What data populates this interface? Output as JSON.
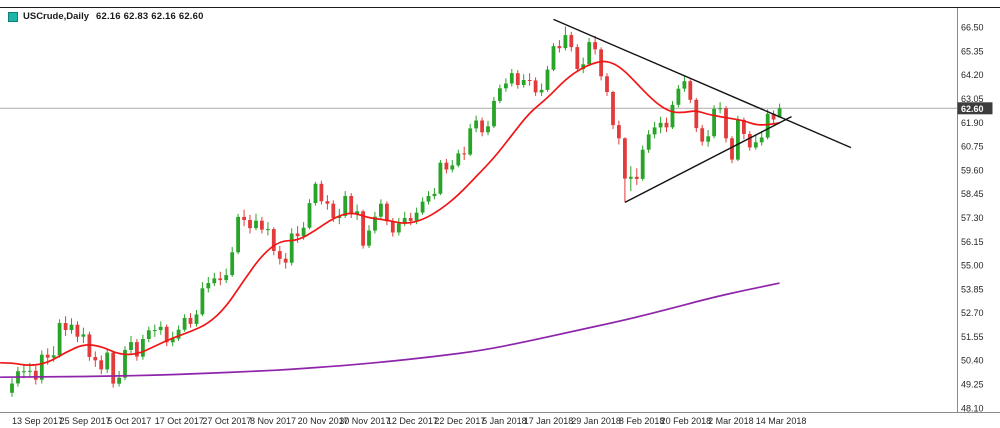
{
  "header": {
    "symbol": "USCrude,Daily",
    "ohlc": "62.16 62.83 62.16 62.60",
    "marker_color": "#1fb5ad"
  },
  "chart_data": {
    "type": "candlestick",
    "title": "USCrude, Daily",
    "legend_position": "none",
    "grid": false,
    "ylim": [
      47.92,
      67.45
    ],
    "last_price": 62.6,
    "last_price_label": "62.60",
    "y_ticks": [
      "66.50",
      "65.35",
      "64.20",
      "63.05",
      "61.90",
      "60.75",
      "59.60",
      "58.45",
      "57.30",
      "56.15",
      "55.00",
      "53.85",
      "52.70",
      "51.55",
      "50.40",
      "49.25",
      "48.10"
    ],
    "x_labels": [
      {
        "label": "13 Sep 2017",
        "i": 0
      },
      {
        "label": "25 Sep 2017",
        "i": 8
      },
      {
        "label": "5 Oct 2017",
        "i": 16
      },
      {
        "label": "17 Oct 2017",
        "i": 24
      },
      {
        "label": "27 Oct 2017",
        "i": 32
      },
      {
        "label": "8 Nov 2017",
        "i": 40
      },
      {
        "label": "20 Nov 2017",
        "i": 48
      },
      {
        "label": "30 Nov 2017",
        "i": 55
      },
      {
        "label": "12 Dec 2017",
        "i": 63
      },
      {
        "label": "22 Dec 2017",
        "i": 71
      },
      {
        "label": "5 Jan 2018",
        "i": 79
      },
      {
        "label": "17 Jan 2018",
        "i": 86
      },
      {
        "label": "29 Jan 2018",
        "i": 94
      },
      {
        "label": "8 Feb 2018",
        "i": 102
      },
      {
        "label": "20 Feb 2018",
        "i": 109
      },
      {
        "label": "2 Mar 2018",
        "i": 117
      },
      {
        "label": "14 Mar 2018",
        "i": 125
      }
    ],
    "candles": [
      [
        48.85,
        49.55,
        48.65,
        49.3
      ],
      [
        49.3,
        50.1,
        49.15,
        49.89
      ],
      [
        49.89,
        50.25,
        49.55,
        49.89
      ],
      [
        49.89,
        50.3,
        49.6,
        49.91
      ],
      [
        49.91,
        50.15,
        49.25,
        49.48
      ],
      [
        49.48,
        50.9,
        49.3,
        50.69
      ],
      [
        50.69,
        51.0,
        50.2,
        50.55
      ],
      [
        50.55,
        51.1,
        50.35,
        50.66
      ],
      [
        50.66,
        52.4,
        50.55,
        52.22
      ],
      [
        52.22,
        52.55,
        51.6,
        51.88
      ],
      [
        51.88,
        52.45,
        51.7,
        52.14
      ],
      [
        52.14,
        52.3,
        51.3,
        51.56
      ],
      [
        51.56,
        52.0,
        51.25,
        51.67
      ],
      [
        51.67,
        51.8,
        50.4,
        50.58
      ],
      [
        50.58,
        50.85,
        50.1,
        50.42
      ],
      [
        50.42,
        50.65,
        49.75,
        49.98
      ],
      [
        49.98,
        51.0,
        49.8,
        50.79
      ],
      [
        50.79,
        50.85,
        49.1,
        49.29
      ],
      [
        49.29,
        49.9,
        49.15,
        49.58
      ],
      [
        49.58,
        51.1,
        49.45,
        50.92
      ],
      [
        50.92,
        51.6,
        50.75,
        51.3
      ],
      [
        51.3,
        51.45,
        50.4,
        50.6
      ],
      [
        50.6,
        51.65,
        50.45,
        51.45
      ],
      [
        51.45,
        52.05,
        51.3,
        51.87
      ],
      [
        51.87,
        52.15,
        51.55,
        51.88
      ],
      [
        51.88,
        52.3,
        51.65,
        52.04
      ],
      [
        52.04,
        52.15,
        51.1,
        51.29
      ],
      [
        51.29,
        51.8,
        51.1,
        51.47
      ],
      [
        51.47,
        52.1,
        51.35,
        51.9
      ],
      [
        51.9,
        52.65,
        51.8,
        52.47
      ],
      [
        52.47,
        52.7,
        52.0,
        52.18
      ],
      [
        52.18,
        52.85,
        52.05,
        52.64
      ],
      [
        52.64,
        54.2,
        52.55,
        53.9
      ],
      [
        53.9,
        54.45,
        53.7,
        54.15
      ],
      [
        54.15,
        54.65,
        54.0,
        54.38
      ],
      [
        54.38,
        54.7,
        54.05,
        54.3
      ],
      [
        54.3,
        54.85,
        54.15,
        54.54
      ],
      [
        54.54,
        55.9,
        54.45,
        55.64
      ],
      [
        55.64,
        57.5,
        55.55,
        57.35
      ],
      [
        57.35,
        57.7,
        56.9,
        57.2
      ],
      [
        57.2,
        57.45,
        56.55,
        56.81
      ],
      [
        56.81,
        57.5,
        56.7,
        57.17
      ],
      [
        57.17,
        57.35,
        56.55,
        56.74
      ],
      [
        56.74,
        57.1,
        56.45,
        56.76
      ],
      [
        56.76,
        56.85,
        55.5,
        55.7
      ],
      [
        55.7,
        55.95,
        55.05,
        55.33
      ],
      [
        55.33,
        55.6,
        54.85,
        55.14
      ],
      [
        55.14,
        56.8,
        55.0,
        56.55
      ],
      [
        56.55,
        56.9,
        56.1,
        56.42
      ],
      [
        56.42,
        57.1,
        56.25,
        56.83
      ],
      [
        56.83,
        58.2,
        56.75,
        58.02
      ],
      [
        58.02,
        59.05,
        57.9,
        58.95
      ],
      [
        58.95,
        59.1,
        57.95,
        58.11
      ],
      [
        58.11,
        58.4,
        57.7,
        57.99
      ],
      [
        57.99,
        58.15,
        57.1,
        57.3
      ],
      [
        57.3,
        57.75,
        57.0,
        57.4
      ],
      [
        57.4,
        58.6,
        57.3,
        58.36
      ],
      [
        58.36,
        58.5,
        57.3,
        57.47
      ],
      [
        57.47,
        57.95,
        57.2,
        57.62
      ],
      [
        57.62,
        57.7,
        55.82,
        55.96
      ],
      [
        55.96,
        56.95,
        55.85,
        56.69
      ],
      [
        56.69,
        57.6,
        56.55,
        57.36
      ],
      [
        57.36,
        58.2,
        57.25,
        57.99
      ],
      [
        57.99,
        58.1,
        56.95,
        57.14
      ],
      [
        57.14,
        57.3,
        56.4,
        56.6
      ],
      [
        56.6,
        57.3,
        56.45,
        57.04
      ],
      [
        57.04,
        57.6,
        56.9,
        57.3
      ],
      [
        57.3,
        57.55,
        56.95,
        57.16
      ],
      [
        57.16,
        57.8,
        57.0,
        57.56
      ],
      [
        57.56,
        58.3,
        57.45,
        58.09
      ],
      [
        58.09,
        58.6,
        57.95,
        58.36
      ],
      [
        58.36,
        58.75,
        58.2,
        58.47
      ],
      [
        58.47,
        60.1,
        58.4,
        59.97
      ],
      [
        59.97,
        60.15,
        59.45,
        59.64
      ],
      [
        59.64,
        60.1,
        59.5,
        59.84
      ],
      [
        59.84,
        60.6,
        59.75,
        60.42
      ],
      [
        60.42,
        60.75,
        60.1,
        60.37
      ],
      [
        60.37,
        61.85,
        60.3,
        61.63
      ],
      [
        61.63,
        62.25,
        61.45,
        62.01
      ],
      [
        62.01,
        62.15,
        61.25,
        61.44
      ],
      [
        61.44,
        62.0,
        61.3,
        61.73
      ],
      [
        61.73,
        63.15,
        61.65,
        62.96
      ],
      [
        62.96,
        63.75,
        62.85,
        63.57
      ],
      [
        63.57,
        64.05,
        63.4,
        63.8
      ],
      [
        63.8,
        64.5,
        63.65,
        64.3
      ],
      [
        64.3,
        64.45,
        63.55,
        63.73
      ],
      [
        63.73,
        64.25,
        63.6,
        63.97
      ],
      [
        63.97,
        64.3,
        63.7,
        63.95
      ],
      [
        63.95,
        64.1,
        63.2,
        63.37
      ],
      [
        63.37,
        63.8,
        63.2,
        63.49
      ],
      [
        63.49,
        64.65,
        63.4,
        64.47
      ],
      [
        64.47,
        65.75,
        64.4,
        65.61
      ],
      [
        65.61,
        65.9,
        65.3,
        65.51
      ],
      [
        65.51,
        66.55,
        65.4,
        66.14
      ],
      [
        66.14,
        66.3,
        65.35,
        65.56
      ],
      [
        65.56,
        65.7,
        64.35,
        64.5
      ],
      [
        64.5,
        65.05,
        64.3,
        64.73
      ],
      [
        64.73,
        66.0,
        64.65,
        65.8
      ],
      [
        65.8,
        66.1,
        65.2,
        65.45
      ],
      [
        65.45,
        65.55,
        63.95,
        64.15
      ],
      [
        64.15,
        64.3,
        63.2,
        63.39
      ],
      [
        63.39,
        63.45,
        61.6,
        61.79
      ],
      [
        61.79,
        62.0,
        60.85,
        61.15
      ],
      [
        61.15,
        61.2,
        58.07,
        59.2
      ],
      [
        59.2,
        59.8,
        58.6,
        59.29
      ],
      [
        59.29,
        59.7,
        58.9,
        59.19
      ],
      [
        59.19,
        60.8,
        59.1,
        60.6
      ],
      [
        60.6,
        61.55,
        60.45,
        61.34
      ],
      [
        61.34,
        61.95,
        61.15,
        61.68
      ],
      [
        61.68,
        62.2,
        61.4,
        61.9
      ],
      [
        61.9,
        62.15,
        61.45,
        61.68
      ],
      [
        61.68,
        62.95,
        61.6,
        62.77
      ],
      [
        62.77,
        63.73,
        62.65,
        63.55
      ],
      [
        63.55,
        64.15,
        63.4,
        63.91
      ],
      [
        63.91,
        64.0,
        62.85,
        63.01
      ],
      [
        63.01,
        63.1,
        61.45,
        61.64
      ],
      [
        61.64,
        61.8,
        60.8,
        60.99
      ],
      [
        60.99,
        61.55,
        60.75,
        61.25
      ],
      [
        61.25,
        62.75,
        61.15,
        62.57
      ],
      [
        62.57,
        62.9,
        62.35,
        62.6
      ],
      [
        62.6,
        62.7,
        60.95,
        61.15
      ],
      [
        61.15,
        61.25,
        59.95,
        60.12
      ],
      [
        60.12,
        62.25,
        60.05,
        62.04
      ],
      [
        62.04,
        62.15,
        61.1,
        61.36
      ],
      [
        61.36,
        61.5,
        60.55,
        60.71
      ],
      [
        60.71,
        61.3,
        60.6,
        60.96
      ],
      [
        60.96,
        61.5,
        60.8,
        61.19
      ],
      [
        61.19,
        62.55,
        61.1,
        62.34
      ],
      [
        62.34,
        62.5,
        61.85,
        62.06
      ],
      [
        62.16,
        62.83,
        62.16,
        62.6
      ]
    ],
    "series": [
      {
        "name": "ma-fast-red",
        "color": "#f01616",
        "width": 1.7,
        "points": [
          [
            -2,
            50.3
          ],
          [
            0,
            50.3
          ],
          [
            3,
            50.15
          ],
          [
            6,
            50.3
          ],
          [
            9,
            50.8
          ],
          [
            12,
            51.2
          ],
          [
            15,
            51.1
          ],
          [
            18,
            50.7
          ],
          [
            21,
            50.7
          ],
          [
            24,
            51.1
          ],
          [
            27,
            51.5
          ],
          [
            30,
            51.8
          ],
          [
            33,
            52.2
          ],
          [
            36,
            53.0
          ],
          [
            39,
            54.3
          ],
          [
            42,
            55.5
          ],
          [
            45,
            56.2
          ],
          [
            48,
            56.2
          ],
          [
            51,
            56.7
          ],
          [
            54,
            57.3
          ],
          [
            57,
            57.6
          ],
          [
            60,
            57.3
          ],
          [
            63,
            57.2
          ],
          [
            66,
            57.0
          ],
          [
            69,
            57.2
          ],
          [
            72,
            57.7
          ],
          [
            75,
            58.4
          ],
          [
            78,
            59.3
          ],
          [
            81,
            60.2
          ],
          [
            84,
            61.3
          ],
          [
            87,
            62.4
          ],
          [
            90,
            63.1
          ],
          [
            93,
            64.0
          ],
          [
            96,
            64.6
          ],
          [
            99,
            64.9
          ],
          [
            101,
            64.8
          ],
          [
            103,
            64.4
          ],
          [
            105,
            63.8
          ],
          [
            107,
            63.2
          ],
          [
            109,
            62.7
          ],
          [
            111,
            62.4
          ],
          [
            113,
            62.4
          ],
          [
            115,
            62.5
          ],
          [
            117,
            62.3
          ],
          [
            119,
            62.2
          ],
          [
            121,
            62.1
          ],
          [
            123,
            62.0
          ],
          [
            125,
            61.8
          ],
          [
            127,
            61.8
          ],
          [
            129,
            61.9
          ]
        ]
      },
      {
        "name": "ma-slow-purple",
        "color": "#8e24aa",
        "width": 1.7,
        "points": [
          [
            -2,
            49.6
          ],
          [
            8,
            49.62
          ],
          [
            16,
            49.65
          ],
          [
            24,
            49.7
          ],
          [
            32,
            49.78
          ],
          [
            40,
            49.88
          ],
          [
            48,
            50.0
          ],
          [
            55,
            50.15
          ],
          [
            63,
            50.35
          ],
          [
            71,
            50.6
          ],
          [
            79,
            50.9
          ],
          [
            86,
            51.3
          ],
          [
            94,
            51.8
          ],
          [
            102,
            52.3
          ],
          [
            109,
            52.8
          ],
          [
            117,
            53.4
          ],
          [
            123,
            53.8
          ],
          [
            129,
            54.15
          ]
        ]
      }
    ],
    "trendlines": [
      {
        "name": "descending-trendline",
        "from": [
          91,
          66.9
        ],
        "to": [
          141,
          60.7
        ]
      },
      {
        "name": "ascending-trendline",
        "from": [
          103,
          58.05
        ],
        "to": [
          131,
          62.2
        ]
      }
    ],
    "colors": {
      "up": "#28a428",
      "down": "#e23b3b",
      "trendline": "#141414",
      "last_price_line": "#ababab",
      "tag_bg": "#3d3d3d",
      "tag_text": "#ffffff",
      "axis_text": "#262626",
      "axis_line": "#8a8a8a",
      "top_border": "#1c1c1c"
    }
  }
}
